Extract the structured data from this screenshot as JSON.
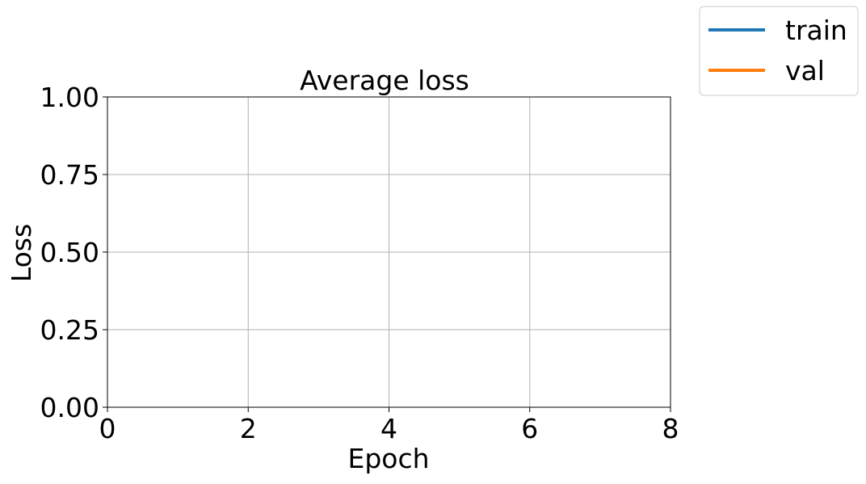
{
  "chart_data": {
    "type": "line",
    "title": "Average loss",
    "xlabel": "Epoch",
    "ylabel": "Loss",
    "xlim": [
      0,
      8
    ],
    "ylim": [
      0,
      1
    ],
    "x_ticks": [
      0,
      2,
      4,
      6,
      8
    ],
    "x_tick_labels": [
      "0",
      "2",
      "4",
      "6",
      "8"
    ],
    "y_ticks": [
      0,
      0.25,
      0.5,
      0.75,
      1
    ],
    "y_tick_labels": [
      "0.00",
      "0.25",
      "0.50",
      "0.75",
      "1.00"
    ],
    "grid": true,
    "legend_placement": "outside-top-right",
    "series": [
      {
        "name": "train",
        "color": "#1f77b4",
        "x": [],
        "y": []
      },
      {
        "name": "val",
        "color": "#ff7f0e",
        "x": [],
        "y": []
      }
    ]
  },
  "colors": {
    "grid": "#b0b0b0",
    "axes": "#000000",
    "legend_border": "#cccccc"
  }
}
